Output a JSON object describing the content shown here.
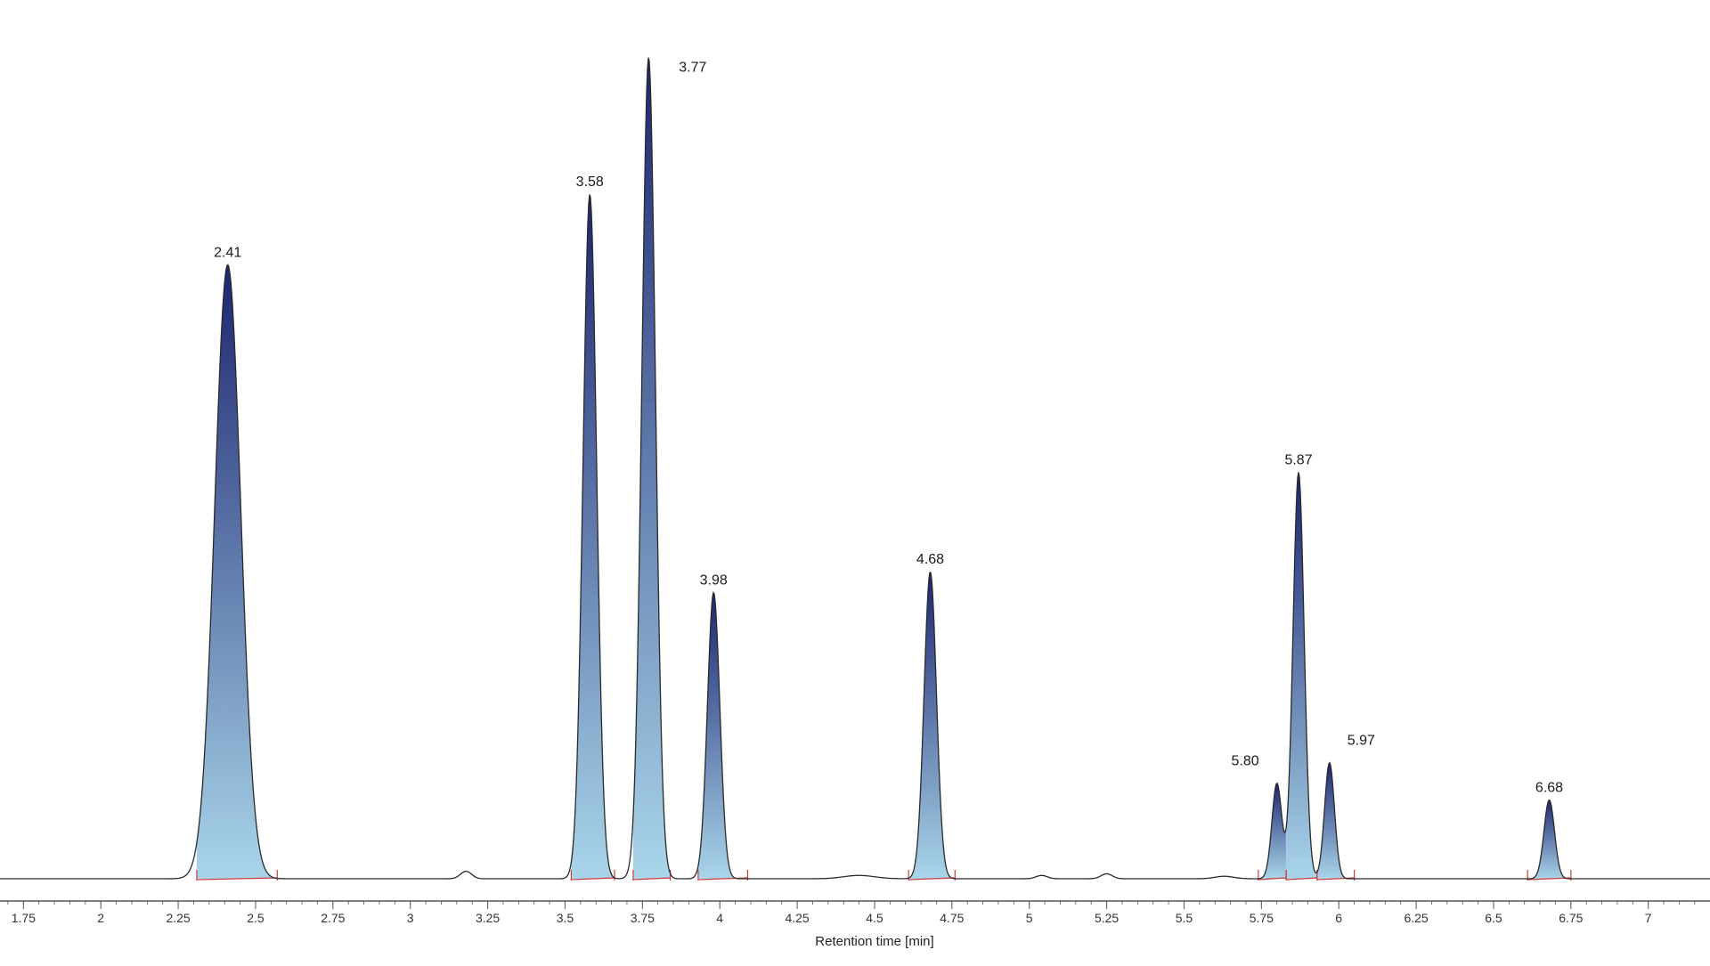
{
  "chart_data": {
    "type": "line",
    "title": "",
    "xlabel": "Retention time [min]",
    "ylabel": "",
    "xlim": [
      1.7,
      7.2
    ],
    "ylim": [
      0,
      100
    ],
    "grid": false,
    "legend": "none",
    "x_ticks": [
      1.75,
      2,
      2.25,
      2.5,
      2.75,
      3,
      3.25,
      3.5,
      3.75,
      4,
      4.25,
      4.5,
      4.75,
      5,
      5.25,
      5.5,
      5.75,
      6,
      6.25,
      6.5,
      6.75,
      7
    ],
    "x_tick_labels": [
      "1.75",
      "2",
      "2.25",
      "2.5",
      "2.75",
      "3",
      "3.25",
      "3.5",
      "3.75",
      "4",
      "4.25",
      "4.5",
      "4.75",
      "5",
      "5.25",
      "5.5",
      "5.75",
      "6",
      "6.25",
      "6.5",
      "6.75",
      "7"
    ],
    "peaks": [
      {
        "rt": 2.41,
        "label": "2.41",
        "height": 74,
        "width": 0.042,
        "start": 2.31,
        "end": 2.57
      },
      {
        "rt": 3.58,
        "label": "3.58",
        "height": 82.5,
        "width": 0.022,
        "start": 3.52,
        "end": 3.66
      },
      {
        "rt": 3.77,
        "label": "3.77",
        "height": 99,
        "width": 0.022,
        "start": 3.72,
        "end": 3.84
      },
      {
        "rt": 3.98,
        "label": "3.98",
        "height": 34.5,
        "width": 0.02,
        "start": 3.93,
        "end": 4.09
      },
      {
        "rt": 4.68,
        "label": "4.68",
        "height": 37,
        "width": 0.02,
        "start": 4.61,
        "end": 4.76
      },
      {
        "rt": 5.8,
        "label": "5.80",
        "height": 11.5,
        "width": 0.016,
        "start": 5.74,
        "end": 5.83
      },
      {
        "rt": 5.87,
        "label": "5.87",
        "height": 49,
        "width": 0.018,
        "start": 5.83,
        "end": 5.93
      },
      {
        "rt": 5.97,
        "label": "5.97",
        "height": 14,
        "width": 0.016,
        "start": 5.93,
        "end": 6.05
      },
      {
        "rt": 6.68,
        "label": "6.68",
        "height": 9.5,
        "width": 0.017,
        "start": 6.61,
        "end": 6.75
      }
    ],
    "minor_bumps": [
      {
        "rt": 3.18,
        "height": 0.9,
        "width": 0.018
      },
      {
        "rt": 4.45,
        "height": 0.4,
        "width": 0.05
      },
      {
        "rt": 5.04,
        "height": 0.4,
        "width": 0.018
      },
      {
        "rt": 5.25,
        "height": 0.6,
        "width": 0.018
      },
      {
        "rt": 5.63,
        "height": 0.3,
        "width": 0.03
      }
    ],
    "colors": {
      "trace": "#2a2a2a",
      "fill_top": "#1c2570",
      "fill_bottom": "#a9d5ea",
      "baseline": "#cc3b3b",
      "axis": "#555555"
    }
  }
}
